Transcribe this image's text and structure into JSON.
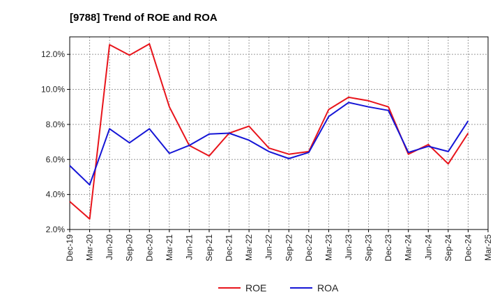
{
  "chart_data": {
    "type": "line",
    "title": "[9788]  Trend of ROE and ROA",
    "xlabel": "",
    "ylabel": "",
    "categories": [
      "Dec-19",
      "Mar-20",
      "Jun-20",
      "Sep-20",
      "Dec-20",
      "Mar-21",
      "Jun-21",
      "Sep-21",
      "Dec-21",
      "Mar-22",
      "Jun-22",
      "Sep-22",
      "Dec-22",
      "Mar-23",
      "Jun-23",
      "Sep-23",
      "Dec-23",
      "Mar-24",
      "Jun-24",
      "Sep-24",
      "Dec-24",
      "Mar-25"
    ],
    "yticks": [
      "2.0%",
      "4.0%",
      "6.0%",
      "8.0%",
      "10.0%",
      "12.0%"
    ],
    "ytick_values": [
      2,
      4,
      6,
      8,
      10,
      12
    ],
    "ylim": [
      2,
      13
    ],
    "grid": true,
    "legend_position": "bottom-center",
    "series": [
      {
        "name": "ROE",
        "color": "#e8141b",
        "values": [
          3.6,
          2.6,
          12.55,
          11.95,
          12.6,
          9.0,
          6.8,
          6.2,
          7.5,
          7.9,
          6.65,
          6.3,
          6.45,
          8.85,
          9.55,
          9.35,
          9.0,
          6.3,
          6.85,
          5.75,
          7.5,
          null
        ]
      },
      {
        "name": "ROA",
        "color": "#1515d6",
        "values": [
          5.65,
          4.55,
          7.75,
          6.95,
          7.75,
          6.35,
          6.8,
          7.45,
          7.5,
          7.1,
          6.45,
          6.05,
          6.4,
          8.45,
          9.25,
          9.0,
          8.8,
          6.4,
          6.75,
          6.45,
          8.2,
          null
        ]
      }
    ]
  }
}
